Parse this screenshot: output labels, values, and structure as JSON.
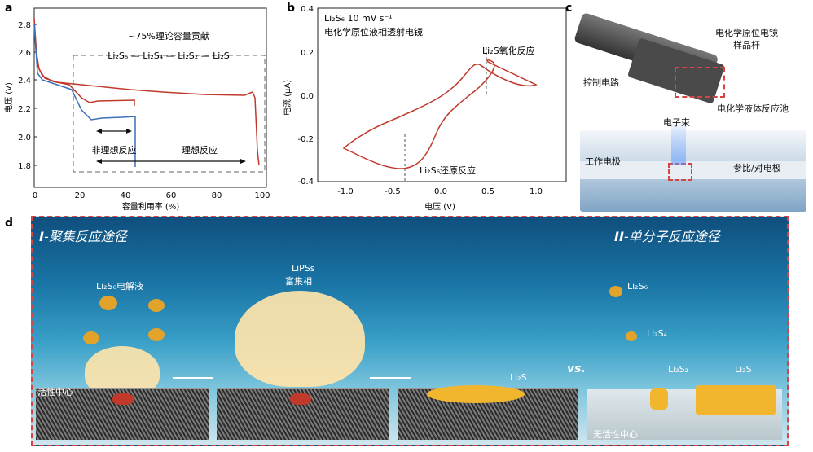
{
  "panel_labels": {
    "a": "a",
    "b": "b",
    "c": "c",
    "d": "d"
  },
  "panel_a": {
    "ylabel": "电压 (V)",
    "xlabel": "容量利用率 (%)",
    "annotation_title": "~75%理论容量贡献",
    "annotation_reaction": "Li₂S₆ — Li₂S₄ — Li₂S₂ — Li₂S",
    "nonideal_label": "非理想反应",
    "ideal_label": "理想反应",
    "yticks": [
      "2.8",
      "2.6",
      "2.4",
      "2.2",
      "2.0",
      "1.8"
    ],
    "xticks": [
      "0",
      "20",
      "40",
      "60",
      "80",
      "100"
    ],
    "colors": {
      "red": "#c0392b",
      "blue": "#3b6fb6"
    }
  },
  "panel_b": {
    "ylabel": "电流 (μA)",
    "xlabel": "电压 (V)",
    "legend_line1": "Li₂S₆ 10 mV s⁻¹",
    "legend_line2": "电化学原位液相透射电镜",
    "oxidation_label": "Li₂S氧化反应",
    "reduction_label": "Li₂S₆还原反应",
    "yticks": [
      "0.4",
      "0.2",
      "0.0",
      "-0.2",
      "-0.4"
    ],
    "xticks": [
      "-1.0",
      "-0.5",
      "0.0",
      "0.5",
      "1.0"
    ]
  },
  "panel_c": {
    "holder_label_line1": "电化学原位电镜",
    "holder_label_line2": "样品杆",
    "control_circuit": "控制电路",
    "cell_label": "电化学液体反应池",
    "beam_label": "电子束",
    "working_electrode": "工作电极",
    "counter_electrode": "参比/对电极"
  },
  "panel_d": {
    "path1_prefix": "I",
    "path1_title": "-聚集反应途径",
    "path2_prefix": "II",
    "path2_title": "-单分子反应途径",
    "electrolyte": "Li₂S₆电解液",
    "lipss_line1": "LiPSs",
    "lipss_line2": "富集相",
    "active_center": "活性中心",
    "li2s_product": "Li₂S",
    "vs": "vs.",
    "s6": "Li₂S₆",
    "s4": "Li₂S₄",
    "s2": "Li₂S₂",
    "s_final": "Li₂S",
    "no_active": "无活性中心"
  }
}
